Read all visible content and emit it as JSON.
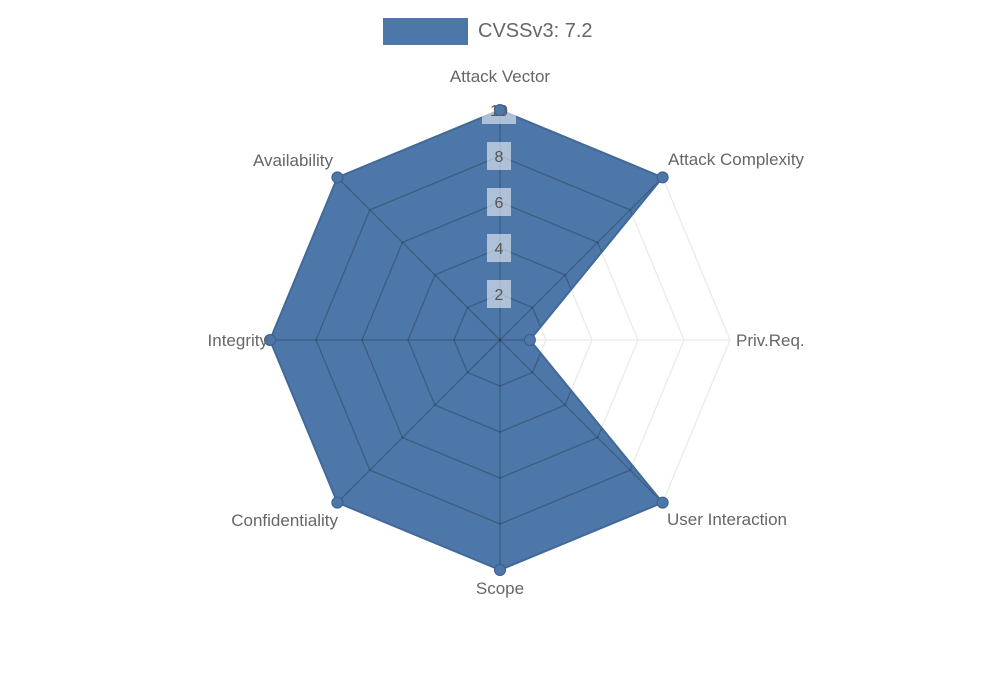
{
  "legend": {
    "label": "CVSSv3: 7.2",
    "swatch_color": "#4d77a8"
  },
  "chart_data": {
    "type": "radar",
    "title": "CVSSv3: 7.2",
    "categories": [
      "Attack Vector",
      "Attack Complexity",
      "Priv.Req.",
      "User Interaction",
      "Scope",
      "Confidentiality",
      "Integrity",
      "Availability"
    ],
    "series": [
      {
        "name": "CVSSv3: 7.2",
        "values": [
          10,
          10,
          1.3,
          10,
          10,
          10,
          10,
          10
        ]
      }
    ],
    "rmax": 10,
    "ticks": [
      2,
      4,
      6,
      8,
      10
    ],
    "grid": true,
    "grid_shape": "polygon",
    "legend_position": "top",
    "colors": {
      "fill": "#4d77a8",
      "border": "#41699a",
      "point": "#4d77a8",
      "point_border": "#3b5f88",
      "grid_inside_fill": "rgba(0,0,0,0.22)",
      "grid_outside_fill": "#ebebeb",
      "tick_text": "#555555",
      "tick_backdrop": "rgba(255,255,255,0.55)",
      "axis_label_text": "#666666"
    }
  }
}
